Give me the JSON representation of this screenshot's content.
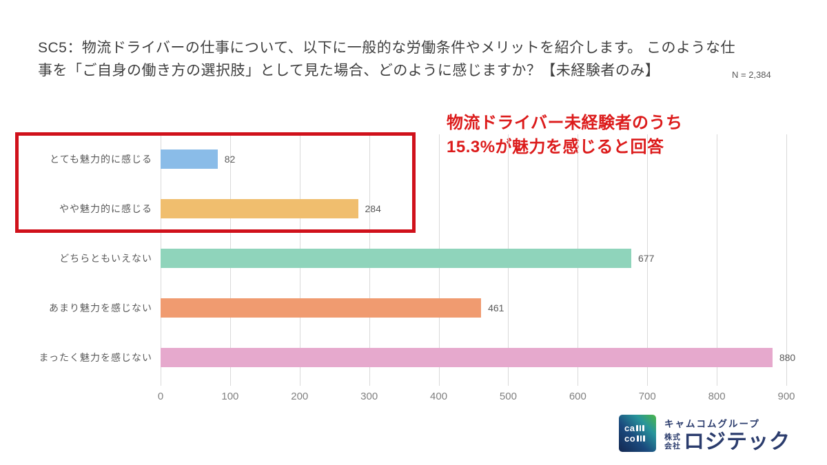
{
  "header": {
    "title_line1": "SC5：物流ドライバーの仕事について、以下に一般的な労働条件やメリットを紹介します。 このような仕",
    "title_line2": "事を「ご自身の働き方の選択肢」として見た場合、どのように感じますか？【未経験者のみ】",
    "sample_size": "N = 2,384"
  },
  "annotation": {
    "line1": "物流ドライバー未経験者のうち",
    "line2": "15.3%が魅力を感じると回答",
    "color": "#dc1b1b"
  },
  "chart_data": {
    "type": "bar",
    "orientation": "horizontal",
    "categories": [
      "とても魅力的に感じる",
      "やや魅力的に感じる",
      "どちらともいえない",
      "あまり魅力を感じない",
      "まったく魅力を感じない"
    ],
    "values": [
      82,
      284,
      677,
      461,
      880
    ],
    "bar_colors": [
      "#8abce8",
      "#f0be6e",
      "#8fd4bb",
      "#f09b70",
      "#e6a9cd"
    ],
    "xlim": [
      0,
      900
    ],
    "xticks": [
      0,
      100,
      200,
      300,
      400,
      500,
      600,
      700,
      800,
      900
    ],
    "grid": true,
    "legend": "none",
    "highlight": {
      "note": "red box around first two bars",
      "color": "#d0111b"
    }
  },
  "logo": {
    "square_line1": "ca",
    "square_line2": "co",
    "group_name": "キャムコムグループ",
    "kk_line1": "株式",
    "kk_line2": "会社",
    "company_name": "ロジテック"
  }
}
